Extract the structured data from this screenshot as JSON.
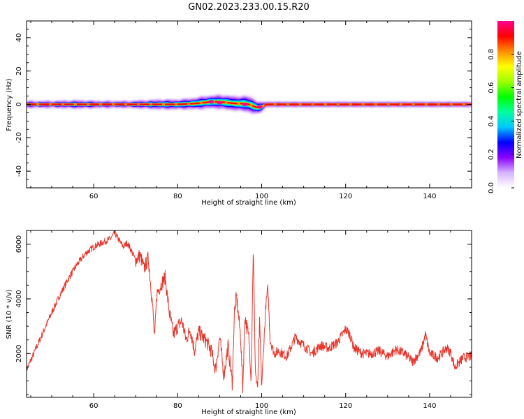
{
  "figure_title": "GN02.2023.233.00.15.R20",
  "colorbar_label": "Normalized spectral amplitude",
  "chart_data": [
    {
      "type": "heatmap",
      "title": "GN02.2023.233.00.15.R20",
      "xlabel": "Height of straight line (km)",
      "ylabel": "Frequency (Hz)",
      "xlim": [
        44,
        150
      ],
      "ylim": [
        -50,
        50
      ],
      "x_ticks": [
        60,
        80,
        100,
        120,
        140
      ],
      "y_ticks": [
        40,
        20,
        0,
        -20,
        -40
      ],
      "x_tick_labels": [
        "60",
        "80",
        "100",
        "120",
        "140"
      ],
      "y_tick_labels": [
        "40",
        "20",
        "0",
        "-20",
        "-40"
      ],
      "colorbar": {
        "label": "Normalized spectral amplitude",
        "range": [
          0,
          1
        ],
        "ticks": [
          0.0,
          0.2,
          0.4,
          0.6,
          0.8
        ],
        "tick_labels": [
          "0.0",
          "0.2",
          "0.4",
          "0.6",
          "0.8"
        ],
        "colormap": [
          "#ffffff",
          "#d6b4ff",
          "#8a00ff",
          "#0000ff",
          "#00c8ff",
          "#00ff9e",
          "#00ff00",
          "#9eff00",
          "#ffff00",
          "#ff8c00",
          "#ff0000",
          "#ff0090"
        ]
      },
      "ridge": {
        "x": [
          44,
          50,
          56,
          62,
          68,
          72,
          76,
          80,
          84,
          86,
          88,
          90,
          92,
          94,
          96,
          97,
          98,
          99,
          100,
          101,
          108,
          120,
          130,
          140,
          150
        ],
        "center_hz": [
          0,
          0,
          0,
          0,
          0,
          0,
          0,
          0,
          0.5,
          1,
          1.5,
          1.5,
          1,
          0.5,
          0.5,
          0,
          -1,
          -2,
          -1.5,
          0,
          0,
          0,
          0,
          0,
          0
        ],
        "halo_halfwidth_hz": [
          2,
          2,
          2.5,
          2,
          2,
          2.5,
          3,
          3,
          3.5,
          4,
          4,
          4.5,
          4.5,
          4.5,
          5,
          5,
          5,
          4,
          3,
          1.5,
          1.5,
          1.5,
          1.5,
          1.5,
          1.5
        ]
      },
      "hot_spots": [
        {
          "x": 88,
          "hz": 1.5
        },
        {
          "x": 90,
          "hz": 1
        },
        {
          "x": 96,
          "hz": 0
        },
        {
          "x": 99.5,
          "hz": -1.5
        }
      ]
    },
    {
      "type": "line",
      "xlabel": "Height of straight line (km)",
      "ylabel": "SNR (10 * v/v)",
      "xlim": [
        44,
        150
      ],
      "ylim": [
        400,
        6500
      ],
      "x_ticks": [
        60,
        80,
        100,
        120,
        140
      ],
      "y_ticks": [
        2000,
        4000,
        6000
      ],
      "x_tick_labels": [
        "60",
        "80",
        "100",
        "120",
        "140"
      ],
      "y_tick_labels": [
        "2000",
        "4000",
        "6000"
      ],
      "series": [
        {
          "color": "#e8352b",
          "x": [
            44,
            46,
            48,
            50,
            52,
            54,
            56,
            58,
            60,
            62,
            64,
            65,
            66,
            67,
            68,
            69,
            70,
            71,
            72,
            73,
            74,
            74.5,
            75,
            76,
            77,
            78,
            79,
            80,
            81,
            82,
            83,
            84,
            85,
            86,
            87,
            88,
            89,
            90,
            91,
            92,
            93,
            93.5,
            94,
            95,
            95.5,
            96,
            97,
            97.5,
            98,
            98.5,
            99,
            99.5,
            100,
            100.5,
            101,
            101.5,
            102,
            103,
            104,
            106,
            108,
            110,
            112,
            114,
            116,
            118,
            120,
            121,
            122,
            124,
            126,
            128,
            130,
            132,
            134,
            136,
            138,
            139,
            140,
            142,
            144,
            145,
            146,
            148,
            150
          ],
          "y": [
            1400,
            2100,
            2800,
            3500,
            4150,
            4750,
            5250,
            5650,
            5900,
            6050,
            6200,
            6400,
            6150,
            5900,
            6050,
            5750,
            5400,
            5600,
            5100,
            5500,
            3800,
            2500,
            4200,
            4500,
            4800,
            3500,
            2700,
            3000,
            3200,
            2500,
            2900,
            2100,
            2800,
            2600,
            2400,
            2100,
            1400,
            2600,
            1200,
            2300,
            900,
            3500,
            4100,
            2600,
            700,
            3400,
            2500,
            1100,
            5900,
            1400,
            600,
            3100,
            800,
            2300,
            3800,
            4400,
            2500,
            2000,
            2100,
            1900,
            2600,
            2300,
            2000,
            2300,
            2200,
            2400,
            2900,
            2700,
            2200,
            2000,
            2000,
            2100,
            1900,
            2150,
            2000,
            1700,
            2100,
            2700,
            2000,
            1850,
            2200,
            2050,
            1500,
            1850,
            1900
          ]
        }
      ]
    }
  ]
}
